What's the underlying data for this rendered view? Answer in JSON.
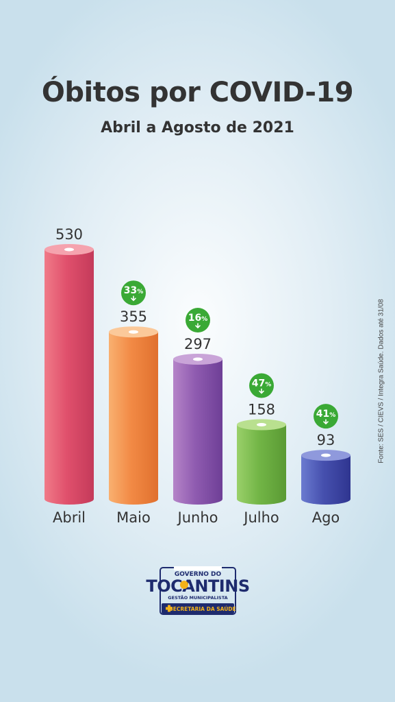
{
  "chart_data": {
    "type": "bar",
    "title": "Óbitos por COVID-19",
    "subtitle": "Abril a Agosto de 2021",
    "categories": [
      "Abril",
      "Maio",
      "Junho",
      "Julho",
      "Ago"
    ],
    "values": [
      530,
      355,
      297,
      158,
      93
    ],
    "value_labels": [
      "530",
      "355",
      "297",
      "158",
      "93"
    ],
    "changes": [
      null,
      {
        "num": "33",
        "pct": "%"
      },
      {
        "num": "16",
        "pct": "%"
      },
      {
        "num": "47",
        "pct": "%"
      },
      {
        "num": "41",
        "pct": "%"
      }
    ],
    "colors": [
      {
        "light": "#f07a88",
        "base": "#e0506c",
        "dark": "#c43a5a",
        "top": "#f5a3ae"
      },
      {
        "light": "#f9b070",
        "base": "#f28a45",
        "dark": "#e0702e",
        "top": "#fbc99a"
      },
      {
        "light": "#b584c8",
        "base": "#8f5bb0",
        "dark": "#6e3f96",
        "top": "#c9a4d8"
      },
      {
        "light": "#9ad06a",
        "base": "#72b546",
        "dark": "#5a9a34",
        "top": "#b9e08f"
      },
      {
        "light": "#6b7bd0",
        "base": "#4650ae",
        "dark": "#2f3590",
        "top": "#8f99dc"
      }
    ],
    "badge_color": "#3aa935",
    "ylim": [
      0,
      530
    ],
    "grid": false,
    "legend": "none"
  },
  "source": "Fonte: SES / CIEVS / Integra Saúde. Dados até 31/08",
  "logo": {
    "line1": "GOVERNO DO",
    "line2": "TOCANTINS",
    "line3": "GESTÃO MUNICIPALISTA",
    "line4": "SECRETARIA DA SAÚDE",
    "colors": {
      "navy": "#1e2b6e",
      "gold": "#f3b21a"
    }
  }
}
